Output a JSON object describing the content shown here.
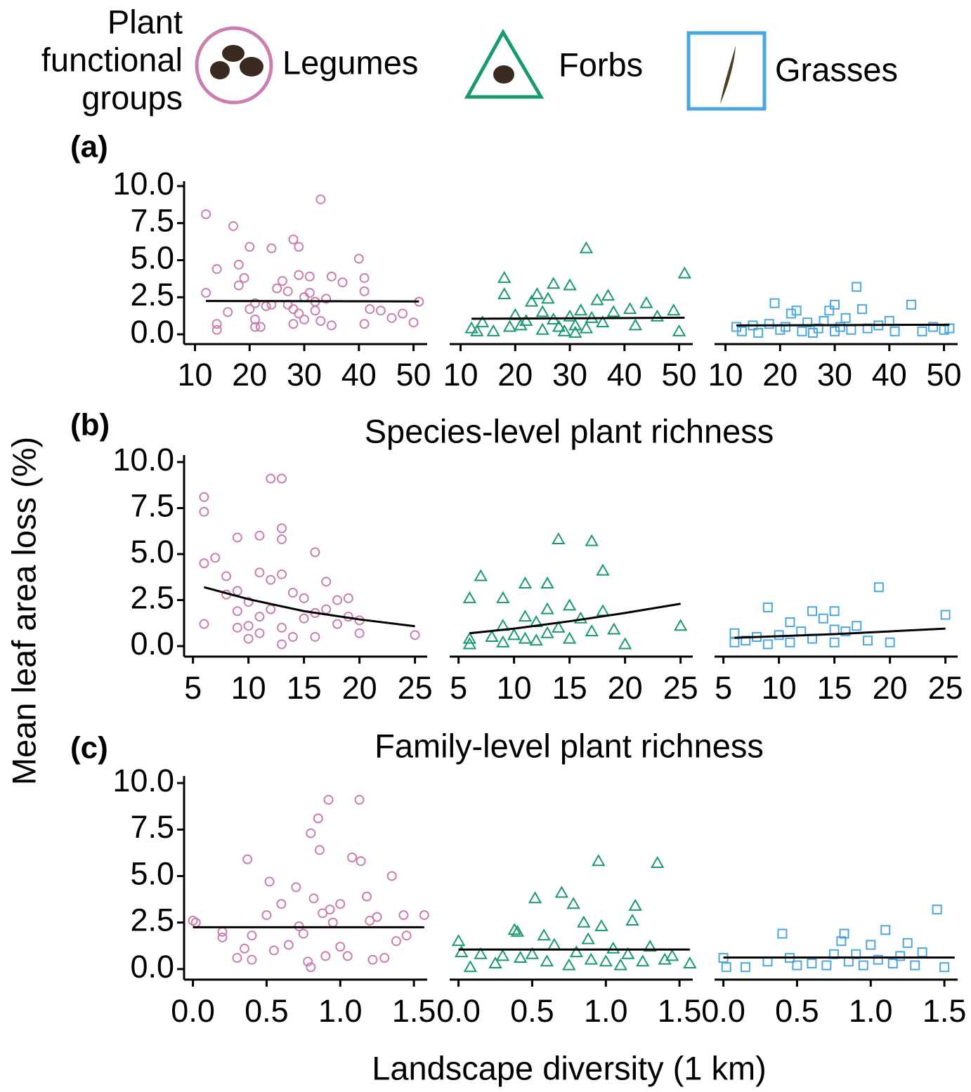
{
  "legend_title": [
    "Plant",
    "functional",
    "groups"
  ],
  "ylabel": "Mean leaf area loss (%)",
  "chart_data": [
    {
      "type": "scatter",
      "label": "(a)",
      "xlabel": "Species-level plant richness",
      "xlim": [
        8,
        52.5
      ],
      "xticks": [
        10,
        20,
        30,
        40,
        50
      ],
      "ylim": [
        -0.66,
        10.33
      ],
      "yticks": [
        {
          "value": 0,
          "label": "0.0"
        },
        2.5,
        {
          "value": 5,
          "label": "5.0"
        },
        7.5,
        {
          "value": 10,
          "label": "10.0"
        }
      ],
      "series": [
        {
          "name": "Legumes",
          "color": "#c97fb0",
          "marker": "circle",
          "x": [
            12,
            14,
            14,
            14,
            12,
            16,
            17,
            18,
            18,
            19,
            20,
            20,
            21,
            21,
            21,
            22,
            23,
            24,
            24,
            25,
            26,
            27,
            27,
            28,
            28,
            28,
            29,
            29,
            29,
            30,
            30,
            31,
            31,
            32,
            32,
            33,
            33,
            34,
            35,
            35,
            37,
            40,
            41,
            41,
            41,
            42,
            44,
            46,
            48,
            50,
            51
          ],
          "values": [
            8.1,
            4.4,
            0.7,
            0.3,
            2.8,
            1.5,
            7.3,
            4.7,
            3.3,
            3.8,
            5.9,
            1.7,
            2.1,
            1.0,
            0.5,
            0.5,
            1.9,
            5.8,
            2.0,
            3.1,
            3.6,
            2.0,
            2.9,
            6.4,
            1.7,
            0.7,
            5.9,
            4.0,
            1.4,
            2.5,
            1.0,
            3.9,
            2.8,
            2.2,
            1.6,
            9.1,
            0.9,
            2.4,
            3.9,
            0.6,
            3.5,
            5.1,
            3.8,
            2.9,
            0.7,
            1.7,
            1.6,
            1.1,
            1.4,
            0.8,
            2.2
          ],
          "fit_x": [
            12,
            51
          ],
          "fit_values": [
            2.25,
            2.22
          ]
        },
        {
          "name": "Forbs",
          "color": "#1a9a6c",
          "marker": "triangle",
          "x": [
            12,
            13,
            14,
            16,
            18,
            18,
            19,
            20,
            21,
            22,
            23,
            24,
            25,
            25,
            26,
            27,
            27,
            28,
            29,
            30,
            30,
            31,
            31,
            32,
            33,
            33,
            34,
            35,
            36,
            37,
            38,
            41,
            42,
            44,
            46,
            49,
            50,
            51
          ],
          "values": [
            0.4,
            0.2,
            0.8,
            0.2,
            3.8,
            2.7,
            0.5,
            1.3,
            0.6,
            0.9,
            2.2,
            2.7,
            1.5,
            0.3,
            2.4,
            3.4,
            1.0,
            0.5,
            0.2,
            3.3,
            1.2,
            0.6,
            0.1,
            1.6,
            5.8,
            0.4,
            1.1,
            2.3,
            0.8,
            2.6,
            1.5,
            1.7,
            0.6,
            2.1,
            1.2,
            1.6,
            0.2,
            4.1
          ],
          "fit_x": [
            12,
            51
          ],
          "fit_values": [
            1.05,
            1.12
          ]
        },
        {
          "name": "Grasses",
          "color": "#4ba8dd",
          "marker": "square",
          "x": [
            12,
            13,
            15,
            16,
            18,
            19,
            20,
            21,
            22,
            23,
            24,
            25,
            26,
            27,
            28,
            29,
            30,
            30,
            31,
            32,
            33,
            34,
            35,
            36,
            38,
            40,
            41,
            44,
            46,
            48,
            50,
            51
          ],
          "values": [
            0.5,
            0.2,
            0.6,
            0.1,
            0.7,
            2.1,
            0.3,
            0.5,
            1.4,
            1.6,
            0.2,
            0.8,
            0.1,
            0.4,
            0.9,
            1.6,
            0.2,
            2.0,
            0.5,
            1.1,
            0.3,
            3.2,
            1.7,
            0.4,
            0.6,
            0.9,
            0.2,
            2.0,
            0.2,
            0.5,
            0.3,
            0.4
          ],
          "fit_x": [
            12,
            51
          ],
          "fit_values": [
            0.6,
            0.65
          ]
        }
      ]
    },
    {
      "type": "scatter",
      "label": "(b)",
      "xlabel": "Family-level plant richness",
      "xlim": [
        4.2,
        26.1
      ],
      "xticks": [
        5,
        10,
        15,
        20,
        25
      ],
      "ylim": [
        -0.57,
        10.38
      ],
      "yticks": [
        {
          "value": 0,
          "label": "0.0"
        },
        2.5,
        {
          "value": 5,
          "label": "5.0"
        },
        7.5,
        {
          "value": 10,
          "label": "10.0"
        }
      ],
      "series": [
        {
          "color": "#c97fb0",
          "marker": "circle",
          "x": [
            6,
            6,
            6,
            6,
            7,
            8,
            8,
            9,
            9,
            9,
            9,
            10,
            10,
            10,
            11,
            11,
            11,
            11,
            12,
            12,
            12,
            13,
            13,
            13,
            13,
            13,
            13,
            14,
            14,
            15,
            15,
            16,
            16,
            16,
            17,
            17,
            18,
            18,
            19,
            19,
            20,
            20,
            25
          ],
          "values": [
            8.1,
            7.3,
            4.5,
            1.2,
            4.8,
            3.8,
            2.8,
            5.9,
            3.0,
            1.9,
            1.0,
            2.4,
            1.1,
            0.4,
            6.0,
            4.0,
            1.6,
            0.7,
            9.1,
            3.6,
            2.0,
            9.1,
            6.4,
            5.8,
            3.9,
            1.0,
            0.1,
            2.9,
            0.5,
            2.6,
            1.5,
            5.1,
            1.8,
            0.5,
            3.5,
            2.0,
            2.5,
            1.2,
            2.6,
            1.6,
            1.4,
            0.7,
            0.6
          ],
          "fit_x": [
            6,
            10,
            15,
            20,
            25
          ],
          "fit_values": [
            3.2,
            2.55,
            1.9,
            1.45,
            1.08
          ]
        },
        {
          "color": "#1a9a6c",
          "marker": "triangle",
          "x": [
            6,
            6,
            6,
            7,
            8,
            9,
            9,
            9,
            10,
            11,
            11,
            11,
            12,
            12,
            13,
            13,
            13,
            14,
            14,
            15,
            15,
            16,
            17,
            17,
            18,
            18,
            19,
            20,
            25
          ],
          "values": [
            2.6,
            0.4,
            0.1,
            3.8,
            0.5,
            2.6,
            1.1,
            0.2,
            0.6,
            3.4,
            1.6,
            0.4,
            1.3,
            0.3,
            3.4,
            2.0,
            0.7,
            5.8,
            1.0,
            2.2,
            0.4,
            1.5,
            5.7,
            0.8,
            4.1,
            1.9,
            0.9,
            0.1,
            1.1
          ],
          "fit_x": [
            6,
            10,
            15,
            20,
            25
          ],
          "fit_values": [
            0.7,
            0.95,
            1.35,
            1.8,
            2.3
          ]
        },
        {
          "color": "#4ba8dd",
          "marker": "square",
          "x": [
            6,
            6,
            7,
            8,
            9,
            9,
            10,
            11,
            11,
            12,
            13,
            13,
            14,
            15,
            15,
            15,
            16,
            17,
            18,
            19,
            20,
            25
          ],
          "values": [
            0.7,
            0.2,
            0.3,
            0.5,
            2.1,
            0.1,
            0.6,
            1.3,
            0.2,
            0.8,
            1.9,
            0.4,
            1.5,
            0.9,
            1.9,
            0.2,
            0.8,
            1.1,
            0.3,
            3.2,
            0.2,
            1.7
          ],
          "fit_x": [
            6,
            15,
            25
          ],
          "fit_values": [
            0.45,
            0.65,
            0.95
          ]
        }
      ]
    },
    {
      "type": "scatter",
      "label": "(c)",
      "xlabel": "Landscape diversity (1 km)",
      "xlim": [
        -0.06,
        1.59
      ],
      "xticks": [
        {
          "value": 0,
          "label": "0.0"
        },
        0.5,
        {
          "value": 1,
          "label": "1.0"
        },
        1.5
      ],
      "ylim": [
        -0.57,
        10.38
      ],
      "yticks": [
        {
          "value": 0,
          "label": "0.0"
        },
        2.5,
        {
          "value": 5,
          "label": "5.0"
        },
        7.5,
        {
          "value": 10,
          "label": "10.0"
        }
      ],
      "series": [
        {
          "color": "#c97fb0",
          "marker": "circle",
          "x": [
            0.0,
            0.02,
            0.2,
            0.2,
            0.3,
            0.35,
            0.37,
            0.4,
            0.4,
            0.5,
            0.52,
            0.55,
            0.6,
            0.65,
            0.7,
            0.72,
            0.75,
            0.78,
            0.8,
            0.8,
            0.82,
            0.85,
            0.86,
            0.88,
            0.9,
            0.92,
            0.93,
            0.95,
            1.0,
            1.0,
            1.05,
            1.08,
            1.13,
            1.14,
            1.18,
            1.2,
            1.22,
            1.25,
            1.3,
            1.35,
            1.38,
            1.43,
            1.45,
            1.57
          ],
          "values": [
            2.6,
            2.5,
            2.0,
            1.7,
            0.6,
            1.1,
            5.9,
            1.8,
            0.5,
            2.9,
            4.7,
            1.0,
            3.5,
            1.3,
            4.4,
            2.3,
            1.9,
            0.4,
            0.1,
            7.3,
            3.8,
            8.1,
            6.4,
            3.0,
            0.7,
            9.1,
            3.2,
            2.5,
            1.2,
            3.5,
            0.7,
            6.0,
            9.1,
            5.8,
            3.9,
            2.6,
            0.5,
            2.8,
            0.6,
            5.0,
            1.5,
            2.9,
            1.8,
            2.9
          ],
          "fit_x": [
            0,
            1.57
          ],
          "fit_values": [
            2.25,
            2.25
          ]
        },
        {
          "color": "#1a9a6c",
          "marker": "triangle",
          "x": [
            0.0,
            0.02,
            0.08,
            0.15,
            0.25,
            0.3,
            0.38,
            0.4,
            0.42,
            0.5,
            0.52,
            0.58,
            0.6,
            0.65,
            0.7,
            0.75,
            0.78,
            0.8,
            0.85,
            0.88,
            0.9,
            0.95,
            0.97,
            1.0,
            1.05,
            1.1,
            1.15,
            1.18,
            1.2,
            1.25,
            1.3,
            1.35,
            1.4,
            1.45,
            1.57
          ],
          "values": [
            1.5,
            0.9,
            0.1,
            0.8,
            0.3,
            0.7,
            2.1,
            2.0,
            0.6,
            0.8,
            3.8,
            1.8,
            0.4,
            1.3,
            4.1,
            0.2,
            3.5,
            0.9,
            2.5,
            1.6,
            0.5,
            5.8,
            2.3,
            0.4,
            1.1,
            0.2,
            0.8,
            2.6,
            3.4,
            0.4,
            1.2,
            5.7,
            0.5,
            0.7,
            0.3
          ],
          "fit_x": [
            0,
            1.57
          ],
          "fit_values": [
            1.05,
            1.05
          ]
        },
        {
          "color": "#4ba8dd",
          "marker": "square",
          "x": [
            0.0,
            0.02,
            0.15,
            0.3,
            0.4,
            0.45,
            0.5,
            0.6,
            0.7,
            0.75,
            0.8,
            0.82,
            0.85,
            0.9,
            0.95,
            1.0,
            1.05,
            1.1,
            1.15,
            1.2,
            1.25,
            1.3,
            1.35,
            1.45,
            1.5
          ],
          "values": [
            0.6,
            0.1,
            0.1,
            0.4,
            1.9,
            0.6,
            0.2,
            0.3,
            0.2,
            0.8,
            1.5,
            1.9,
            0.4,
            0.8,
            0.2,
            1.3,
            0.5,
            2.1,
            0.3,
            0.7,
            1.4,
            0.2,
            0.9,
            3.2,
            0.1
          ],
          "fit_x": [
            0,
            1.57
          ],
          "fit_values": [
            0.62,
            0.62
          ]
        }
      ]
    }
  ]
}
